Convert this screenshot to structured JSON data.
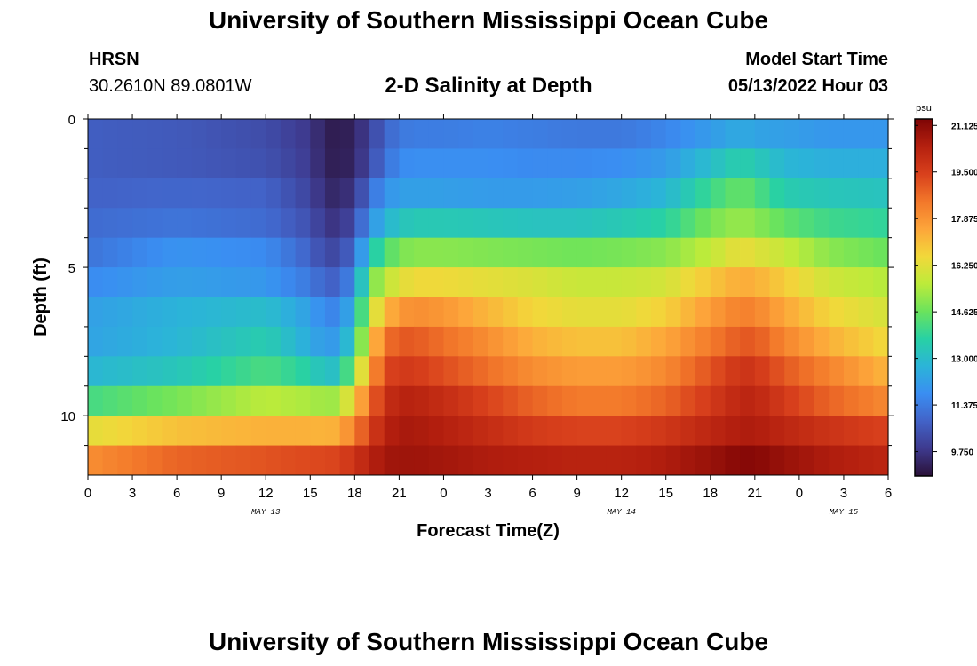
{
  "header": {
    "title": "University of Southern Mississippi Ocean Cube",
    "station_code": "HRSN",
    "station_coords": "30.2610N  89.0801W",
    "plot_title": "2-D Salinity at Depth",
    "model_label": "Model Start Time",
    "model_time": "05/13/2022 Hour 03"
  },
  "footer": {
    "title": "University of Southern Mississippi Ocean Cube"
  },
  "chart_data": {
    "type": "heatmap",
    "title": "2-D Salinity at Depth",
    "xlabel": "Forecast Time(Z)",
    "ylabel": "Depth (ft)",
    "x_range_hours": [
      0,
      54
    ],
    "x_step_hours": 1,
    "y_range_ft": [
      0,
      12
    ],
    "y_inverted": true,
    "x_tick_labels": [
      "0",
      "3",
      "6",
      "9",
      "12",
      "15",
      "18",
      "21",
      "0",
      "3",
      "6",
      "9",
      "12",
      "15",
      "18",
      "21",
      "0",
      "3",
      "6"
    ],
    "x_tick_hours": [
      0,
      3,
      6,
      9,
      12,
      15,
      18,
      21,
      24,
      27,
      30,
      33,
      36,
      39,
      42,
      45,
      48,
      51,
      54
    ],
    "date_labels": [
      {
        "label": "MAY 13",
        "hour": 12
      },
      {
        "label": "MAY 14",
        "hour": 36
      },
      {
        "label": "MAY 15",
        "hour": 51
      }
    ],
    "y_tick_labels": [
      "0",
      "5",
      "10"
    ],
    "y_tick_values": [
      0,
      5,
      10
    ],
    "y_minor_values": [
      1,
      2,
      3,
      4,
      6,
      7,
      8,
      9,
      11
    ],
    "depth_layers_ft": [
      0.5,
      1.5,
      2.5,
      3.5,
      4.5,
      5.5,
      6.5,
      7.5,
      8.5,
      9.5,
      10.5,
      11.5
    ],
    "keyframe_hours": [
      0,
      6,
      12,
      15,
      16,
      17,
      18,
      19,
      20,
      21,
      22,
      24,
      27,
      30,
      33,
      36,
      39,
      42,
      44,
      45,
      47,
      50,
      54
    ],
    "salinity_keyframes_psu": [
      [
        10.7,
        10.6,
        10.3,
        9.8,
        9.3,
        9.1,
        9.4,
        10.0,
        10.8,
        11.3,
        11.4,
        11.4,
        11.5,
        11.4,
        11.3,
        11.3,
        11.6,
        12.1,
        12.5,
        12.3,
        12.2,
        12.0,
        12.0
      ],
      [
        10.7,
        10.6,
        10.4,
        9.9,
        9.3,
        9.2,
        9.4,
        10.2,
        11.1,
        11.7,
        11.8,
        11.8,
        11.8,
        11.7,
        11.7,
        11.8,
        12.1,
        13.0,
        13.6,
        13.4,
        12.8,
        12.6,
        12.6
      ],
      [
        10.8,
        10.9,
        10.8,
        10.1,
        9.5,
        9.4,
        9.8,
        11.0,
        11.9,
        12.2,
        12.2,
        12.2,
        12.1,
        12.1,
        12.2,
        12.4,
        12.8,
        14.0,
        14.6,
        14.3,
        13.5,
        13.3,
        13.2
      ],
      [
        11.0,
        11.2,
        11.0,
        10.4,
        9.8,
        9.7,
        10.3,
        11.8,
        12.7,
        13.2,
        13.4,
        13.4,
        13.3,
        13.2,
        13.2,
        13.4,
        13.7,
        14.8,
        15.2,
        15.0,
        14.5,
        14.0,
        13.8
      ],
      [
        11.2,
        11.9,
        11.7,
        10.8,
        10.2,
        10.2,
        11.0,
        13.2,
        14.2,
        14.8,
        15.0,
        15.0,
        14.9,
        14.8,
        14.7,
        14.8,
        15.0,
        15.7,
        16.4,
        16.2,
        15.8,
        15.0,
        14.6
      ],
      [
        11.7,
        12.2,
        12.0,
        11.3,
        10.8,
        10.8,
        11.8,
        14.6,
        15.6,
        16.2,
        16.5,
        16.5,
        16.3,
        16.1,
        15.8,
        15.8,
        16.0,
        16.9,
        17.4,
        17.3,
        16.8,
        15.9,
        15.5
      ],
      [
        12.2,
        12.7,
        13.0,
        12.2,
        11.6,
        11.6,
        12.8,
        15.5,
        17.1,
        17.8,
        18.0,
        17.8,
        17.2,
        16.6,
        16.3,
        16.3,
        16.7,
        17.7,
        18.3,
        18.2,
        17.5,
        16.6,
        16.0
      ],
      [
        12.3,
        12.8,
        13.5,
        12.5,
        12.0,
        12.2,
        13.5,
        16.5,
        18.5,
        19.0,
        19.0,
        18.6,
        18.0,
        17.3,
        17.0,
        17.0,
        17.5,
        18.4,
        19.0,
        19.0,
        18.2,
        17.3,
        16.5
      ],
      [
        12.8,
        13.3,
        14.2,
        13.6,
        13.0,
        13.2,
        15.0,
        17.5,
        19.3,
        19.6,
        19.6,
        19.2,
        18.6,
        18.0,
        17.7,
        17.7,
        18.1,
        19.1,
        19.8,
        19.7,
        19.0,
        18.2,
        17.2
      ],
      [
        14.1,
        14.8,
        15.6,
        15.4,
        15.2,
        15.3,
        16.8,
        18.5,
        19.9,
        20.3,
        20.3,
        20.0,
        19.4,
        18.8,
        18.4,
        18.4,
        18.8,
        19.6,
        20.2,
        20.2,
        19.6,
        18.8,
        18.1
      ],
      [
        16.3,
        17.0,
        17.3,
        17.3,
        17.2,
        17.4,
        18.3,
        19.4,
        20.3,
        20.6,
        20.6,
        20.4,
        20.0,
        19.6,
        19.4,
        19.4,
        19.7,
        20.2,
        20.5,
        20.5,
        20.2,
        19.8,
        19.4
      ],
      [
        18.0,
        18.8,
        19.1,
        19.3,
        19.3,
        19.4,
        19.8,
        20.3,
        20.7,
        20.8,
        20.8,
        20.7,
        20.5,
        20.4,
        20.3,
        20.3,
        20.5,
        20.9,
        21.2,
        21.2,
        20.9,
        20.5,
        20.2
      ]
    ],
    "colorbar": {
      "unit_label": "psu",
      "min": 8.9,
      "max": 21.35,
      "tick_labels": [
        "9.750",
        "11.375",
        "13.000",
        "14.625",
        "16.250",
        "17.875",
        "19.500",
        "21.125"
      ],
      "tick_values": [
        9.75,
        11.375,
        13.0,
        14.625,
        16.25,
        17.875,
        19.5,
        21.125
      ],
      "color_stops": [
        "#2a1138",
        "#3e3a8e",
        "#4263c8",
        "#3a8ef2",
        "#2bb4d8",
        "#28d1a4",
        "#6be35c",
        "#bdeb3a",
        "#f2d83a",
        "#fda53a",
        "#f2772a",
        "#d8401c",
        "#b5200f",
        "#7e0505"
      ]
    }
  }
}
